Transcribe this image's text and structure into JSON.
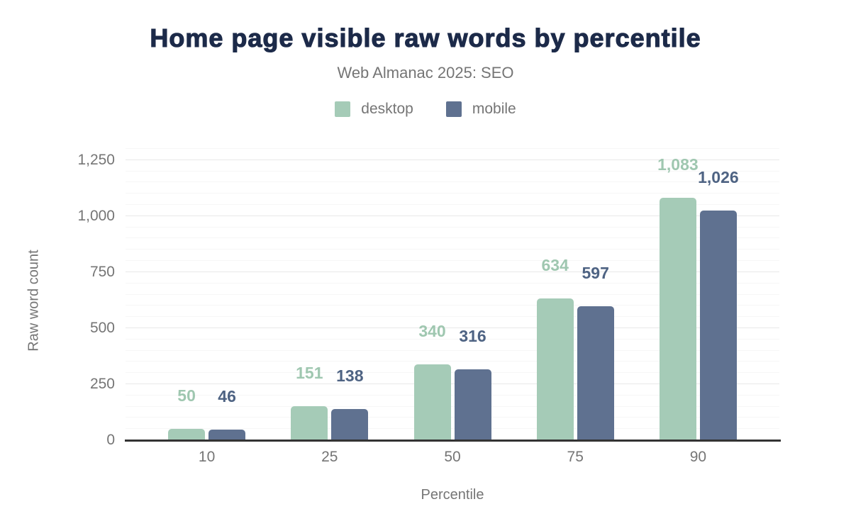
{
  "chart_data": {
    "type": "bar",
    "title": "Home page visible raw words by percentile",
    "subtitle": "Web Almanac 2025: SEO",
    "xlabel": "Percentile",
    "ylabel": "Raw word count",
    "categories": [
      "10",
      "25",
      "50",
      "75",
      "90"
    ],
    "series": [
      {
        "name": "desktop",
        "color": "#a5cbb7",
        "label_color": "#9fc7b0",
        "values": [
          50,
          151,
          340,
          634,
          1083
        ],
        "labels": [
          "50",
          "151",
          "340",
          "634",
          "1,083"
        ]
      },
      {
        "name": "mobile",
        "color": "#5f7190",
        "label_color": "#4e6383",
        "values": [
          46,
          138,
          316,
          597,
          1026
        ],
        "labels": [
          "46",
          "138",
          "316",
          "597",
          "1,026"
        ]
      }
    ],
    "ylim": [
      0,
      1250
    ],
    "yticks": [
      {
        "value": 0,
        "label": "0"
      },
      {
        "value": 250,
        "label": "250"
      },
      {
        "value": 500,
        "label": "500"
      },
      {
        "value": 750,
        "label": "750"
      },
      {
        "value": 1000,
        "label": "1,000"
      },
      {
        "value": 1250,
        "label": "1,250"
      }
    ],
    "grid": {
      "on": true,
      "minor_step": 50,
      "major_step": 250,
      "axis_top": 1300
    },
    "legend_position": "top",
    "colors": {
      "title": "#1c2a49",
      "axis_text": "#757575",
      "axis_line": "#333333",
      "gridline_major": "#e8e8e8",
      "gridline_minor": "#f6f6f6",
      "background": "#ffffff"
    }
  }
}
